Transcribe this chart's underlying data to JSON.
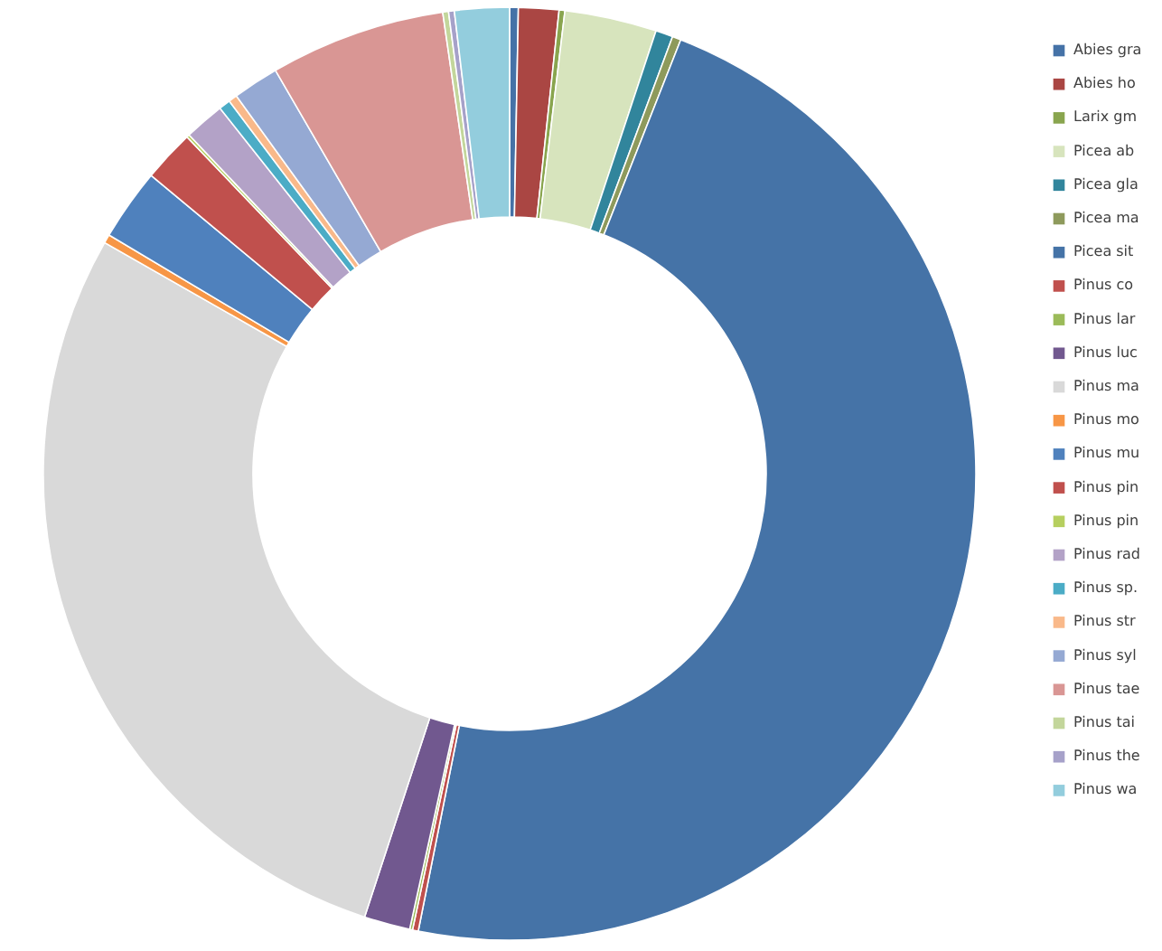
{
  "chart_data": {
    "type": "donut",
    "legend": "right",
    "categories": [
      "Abies gra",
      "Abies ho",
      "Larix gm",
      "Picea ab",
      "Picea gla",
      "Picea ma",
      "Picea sit",
      "Pinus co",
      "Pinus lar",
      "Pinus luc",
      "Pinus ma",
      "Pinus mo",
      "Pinus mu",
      "Pinus pin",
      "Pinus pin",
      "Pinus rad",
      "Pinus sp.",
      "Pinus str",
      "Pinus syl",
      "Pinus tae",
      "Pinus tai",
      "Pinus the",
      "Pinus wa"
    ],
    "values": [
      0.3,
      1.4,
      0.2,
      3.2,
      0.6,
      0.3,
      47.3,
      0.2,
      0.1,
      1.6,
      28.3,
      0.3,
      2.5,
      1.8,
      0.1,
      1.4,
      0.4,
      0.3,
      1.6,
      6.1,
      0.2,
      0.2,
      1.9
    ],
    "colors": [
      "#4572a7",
      "#aa4643",
      "#89a54e",
      "#d7e4bd",
      "#31859c",
      "#8e9a5c",
      "#4573a7",
      "#c0504d",
      "#9bbb59",
      "#71588f",
      "#d9d9d9",
      "#f79646",
      "#4f81bd",
      "#c0504d",
      "#b6cf5f",
      "#b3a2c7",
      "#4bacc6",
      "#f9b98a",
      "#95a9d3",
      "#d99694",
      "#c3d69b",
      "#a6a1c9",
      "#93cddd"
    ]
  }
}
